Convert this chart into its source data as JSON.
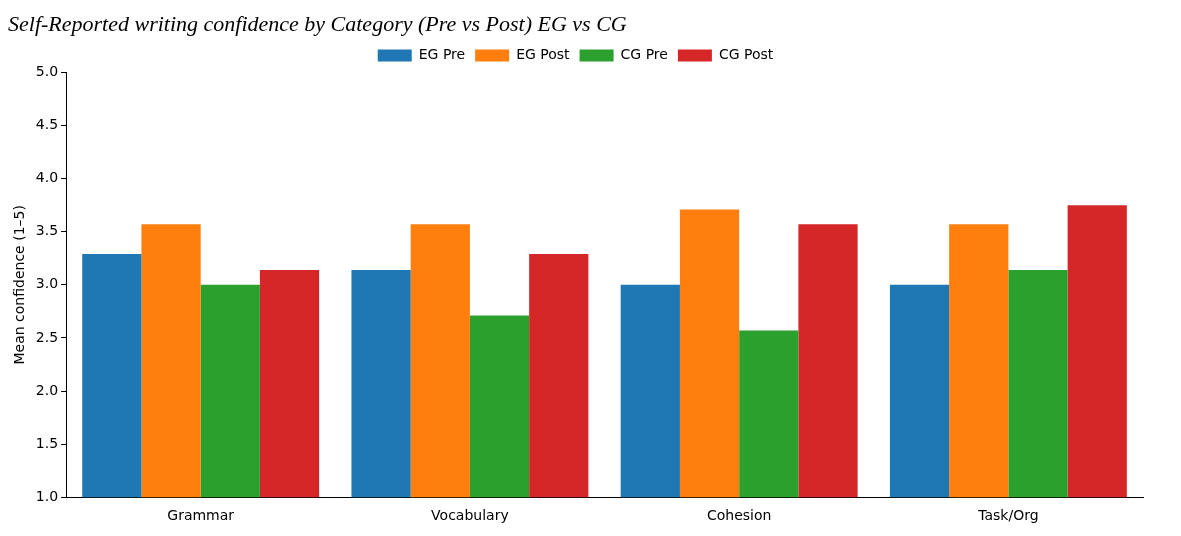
{
  "chart_data": {
    "type": "bar",
    "title": "Self-Reported writing confidence by Category (Pre vs Post) EG vs CG",
    "ylabel": "Mean confidence (1–5)",
    "categories": [
      "Grammar",
      "Vocabulary",
      "Cohesion",
      "Task/Org"
    ],
    "series": [
      {
        "name": "EG Pre",
        "color": "#1f77b4",
        "values": [
          3.29,
          3.14,
          3.0,
          3.0
        ]
      },
      {
        "name": "EG Post",
        "color": "#ff7f0e",
        "values": [
          3.57,
          3.57,
          3.71,
          3.57
        ]
      },
      {
        "name": "CG Pre",
        "color": "#2ca02c",
        "values": [
          3.0,
          2.71,
          2.57,
          3.14
        ]
      },
      {
        "name": "CG Post",
        "color": "#d62728",
        "values": [
          3.14,
          3.29,
          3.57,
          3.75
        ]
      }
    ],
    "ylim": [
      1.0,
      5.0
    ],
    "yticks": [
      {
        "value": 1,
        "label": "1.0"
      },
      {
        "value": 1.5,
        "label": "1.5"
      },
      {
        "value": 2,
        "label": "2.0"
      },
      {
        "value": 2.5,
        "label": "2.5"
      },
      {
        "value": 3,
        "label": "3.0"
      },
      {
        "value": 3.5,
        "label": "3.5"
      },
      {
        "value": 4,
        "label": "4.0"
      },
      {
        "value": 4.5,
        "label": "4.5"
      },
      {
        "value": 5,
        "label": "5.0"
      }
    ],
    "legend": "top",
    "grid": false
  }
}
